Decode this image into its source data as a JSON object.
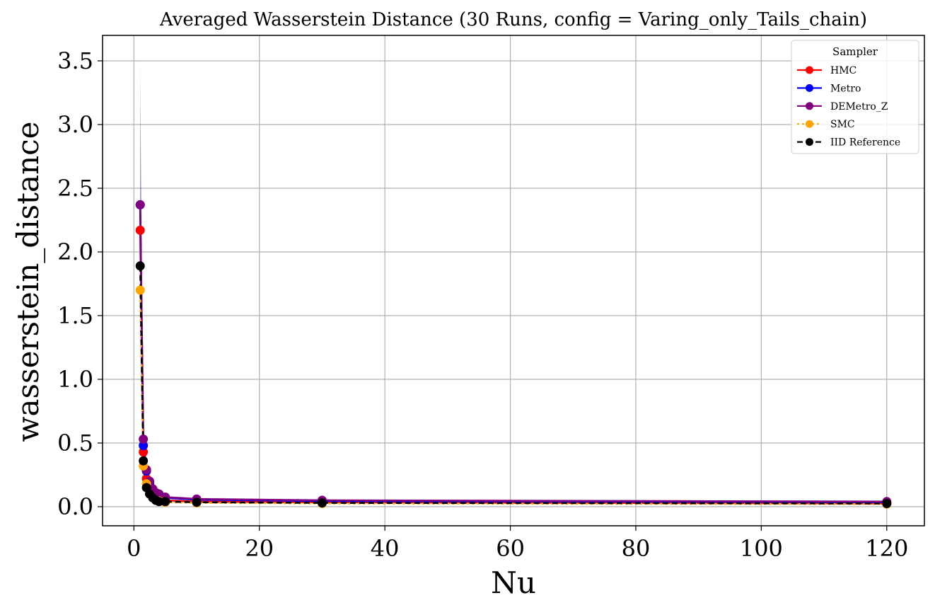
{
  "chart_data": {
    "type": "line",
    "title": "Averaged Wasserstein Distance (30 Runs, config = Varing_only_Tails_chain)",
    "xlabel": "Nu",
    "ylabel": "wasserstein_distance",
    "xlim": [
      -5,
      126
    ],
    "ylim": [
      -0.15,
      3.7
    ],
    "xticks": [
      0,
      20,
      40,
      60,
      80,
      100,
      120
    ],
    "yticks": [
      0.0,
      0.5,
      1.0,
      1.5,
      2.0,
      2.5,
      3.0,
      3.5
    ],
    "grid": true,
    "legend": {
      "title": "Sampler",
      "placement": "top-right"
    },
    "x": [
      1,
      1.5,
      2,
      2.5,
      3,
      3.5,
      4,
      5,
      10,
      30,
      120
    ],
    "series": [
      {
        "name": "HMC",
        "color": "#ff0000",
        "linestyle": "solid",
        "values": [
          2.17,
          0.43,
          0.22,
          0.15,
          0.1,
          0.08,
          0.07,
          0.05,
          0.04,
          0.035,
          0.025
        ],
        "band": [
          [
            2.0,
            2.35
          ],
          [
            0.38,
            0.48
          ],
          [
            0.19,
            0.25
          ],
          [
            0.13,
            0.17
          ],
          [
            0.09,
            0.11
          ],
          [
            0.07,
            0.09
          ],
          [
            0.06,
            0.08
          ],
          [
            0.045,
            0.055
          ],
          [
            0.035,
            0.045
          ],
          [
            0.03,
            0.04
          ],
          [
            0.02,
            0.03
          ]
        ]
      },
      {
        "name": "Metro",
        "color": "#0000ff",
        "linestyle": "solid",
        "values": [
          2.37,
          0.48,
          0.28,
          0.18,
          0.13,
          0.1,
          0.09,
          0.07,
          0.055,
          0.045,
          0.035
        ],
        "band": [
          [
            1.9,
            3.1
          ],
          [
            0.42,
            0.56
          ],
          [
            0.24,
            0.32
          ],
          [
            0.15,
            0.21
          ],
          [
            0.11,
            0.15
          ],
          [
            0.085,
            0.115
          ],
          [
            0.075,
            0.105
          ],
          [
            0.06,
            0.08
          ],
          [
            0.045,
            0.065
          ],
          [
            0.037,
            0.053
          ],
          [
            0.028,
            0.042
          ]
        ]
      },
      {
        "name": "DEMetro_Z",
        "color": "#800080",
        "linestyle": "solid",
        "values": [
          2.37,
          0.53,
          0.29,
          0.2,
          0.14,
          0.11,
          0.1,
          0.075,
          0.06,
          0.05,
          0.04
        ],
        "band": [
          [
            1.7,
            3.28
          ],
          [
            0.45,
            0.61
          ],
          [
            0.25,
            0.33
          ],
          [
            0.17,
            0.23
          ],
          [
            0.12,
            0.16
          ],
          [
            0.095,
            0.125
          ],
          [
            0.085,
            0.115
          ],
          [
            0.065,
            0.085
          ],
          [
            0.05,
            0.07
          ],
          [
            0.042,
            0.058
          ],
          [
            0.033,
            0.047
          ]
        ]
      },
      {
        "name": "SMC",
        "color": "#ffa500",
        "linestyle": "dotted",
        "values": [
          1.7,
          0.32,
          0.18,
          0.1,
          0.07,
          0.05,
          0.045,
          0.035,
          0.03,
          0.025,
          0.02
        ],
        "band": [
          [
            1.55,
            1.85
          ],
          [
            0.28,
            0.36
          ],
          [
            0.16,
            0.2
          ],
          [
            0.09,
            0.11
          ],
          [
            0.06,
            0.08
          ],
          [
            0.045,
            0.055
          ],
          [
            0.04,
            0.05
          ],
          [
            0.03,
            0.04
          ],
          [
            0.025,
            0.035
          ],
          [
            0.02,
            0.03
          ],
          [
            0.015,
            0.025
          ]
        ]
      },
      {
        "name": "IID Reference",
        "color": "#000000",
        "linestyle": "dashed",
        "values": [
          1.89,
          0.36,
          0.15,
          0.1,
          0.07,
          0.05,
          0.04,
          0.04,
          0.035,
          0.03,
          0.025
        ],
        "band": [
          [
            1.75,
            3.52
          ],
          [
            0.33,
            0.39
          ],
          [
            0.13,
            0.17
          ],
          [
            0.09,
            0.11
          ],
          [
            0.06,
            0.08
          ],
          [
            0.045,
            0.055
          ],
          [
            0.035,
            0.045
          ],
          [
            0.035,
            0.045
          ],
          [
            0.03,
            0.04
          ],
          [
            0.025,
            0.035
          ],
          [
            0.02,
            0.03
          ]
        ]
      }
    ]
  }
}
